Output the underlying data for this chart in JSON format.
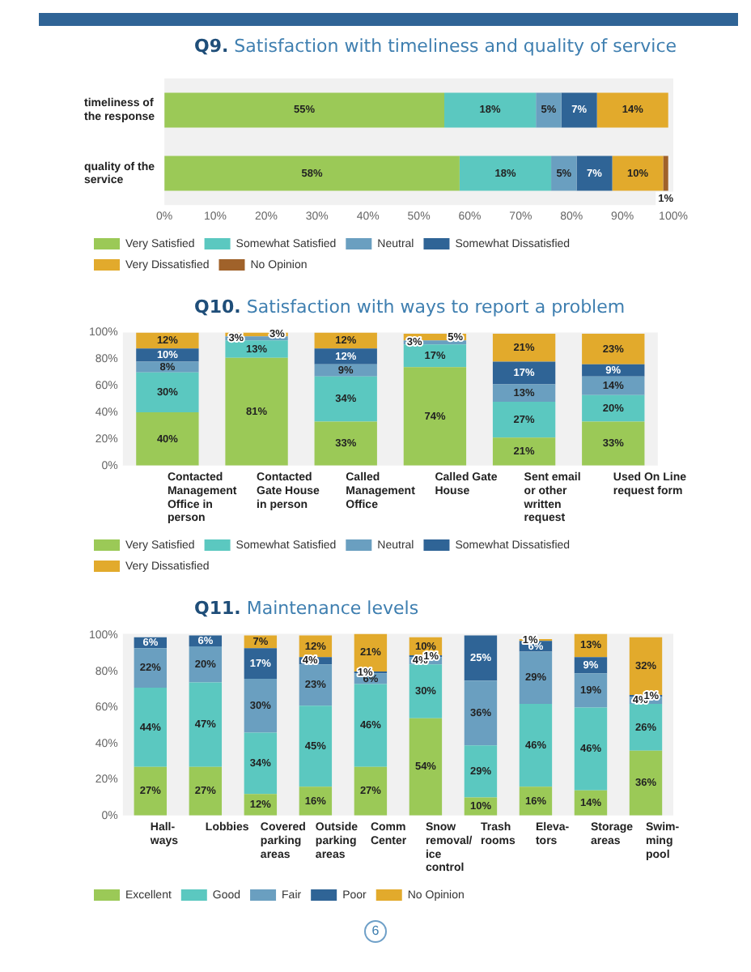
{
  "chart_data": [
    {
      "type": "bar",
      "title": "Q9. Satisfaction with timeliness and quality of service",
      "orientation": "horizontal",
      "stacked": true,
      "legend": "bottom",
      "categories": [
        "timeliness of the response",
        "quality of the service"
      ],
      "xlim": [
        0,
        100
      ],
      "xticks": [
        {
          "value": 0,
          "label": "0%"
        },
        {
          "value": 10,
          "label": "10%"
        },
        {
          "value": 20,
          "label": "20%"
        },
        {
          "value": 30,
          "label": "30%"
        },
        {
          "value": 40,
          "label": "40%"
        },
        {
          "value": 50,
          "label": "50%"
        },
        {
          "value": 60,
          "label": "60%"
        },
        {
          "value": 70,
          "label": "70%"
        },
        {
          "value": 80,
          "label": "80%"
        },
        {
          "value": 90,
          "label": "90%"
        },
        {
          "value": 100,
          "label": "100%"
        }
      ],
      "series": [
        {
          "name": "Very Satisfied",
          "color": "#9bc957",
          "values": [
            55,
            58
          ],
          "value_labels": [
            "55%",
            "58%"
          ]
        },
        {
          "name": "Somewhat Satisfied",
          "color": "#5bc8c0",
          "values": [
            18,
            18
          ],
          "value_labels": [
            "18%",
            "18%"
          ]
        },
        {
          "name": "Neutral",
          "color": "#6a9fc0",
          "values": [
            5,
            5
          ],
          "value_labels": [
            "5%",
            "5%"
          ]
        },
        {
          "name": "Somewhat Dissatisfied",
          "color": "#2f6496",
          "values": [
            7,
            7
          ],
          "value_labels": [
            "7%",
            "7%"
          ]
        },
        {
          "name": "Very Dissatisfied",
          "color": "#e2aa2c",
          "values": [
            14,
            10
          ],
          "value_labels": [
            "14%",
            "10%"
          ]
        },
        {
          "name": "No Opinion",
          "color": "#a0622a",
          "values": [
            null,
            1
          ],
          "value_labels": [
            null,
            "1%"
          ]
        }
      ]
    },
    {
      "type": "bar",
      "title": "Q10. Satisfaction with ways to report a problem",
      "stacked": true,
      "legend": "bottom",
      "categories": [
        "Contacted Management Office in person",
        "Contacted Gate House in person",
        "Called Management Office",
        "Called Gate House",
        "Sent email or other written request",
        "Used On Line request form"
      ],
      "ylim": [
        0,
        100
      ],
      "yticks": [
        {
          "value": 0,
          "label": "0%"
        },
        {
          "value": 20,
          "label": "20%"
        },
        {
          "value": 40,
          "label": "40%"
        },
        {
          "value": 60,
          "label": "60%"
        },
        {
          "value": 80,
          "label": "80%"
        },
        {
          "value": 100,
          "label": "100%"
        }
      ],
      "series": [
        {
          "name": "Very Satisfied",
          "color": "#9bc957",
          "values": [
            40,
            81,
            33,
            74,
            21,
            33
          ],
          "value_labels": [
            "40%",
            "81%",
            "33%",
            "74%",
            "21%",
            "33%"
          ]
        },
        {
          "name": "Somewhat Satisfied",
          "color": "#5bc8c0",
          "values": [
            30,
            13,
            34,
            17,
            27,
            20
          ],
          "value_labels": [
            "30%",
            "13%",
            "34%",
            "17%",
            "27%",
            "20%"
          ]
        },
        {
          "name": "Neutral",
          "color": "#6a9fc0",
          "values": [
            8,
            3,
            9,
            3,
            13,
            14
          ],
          "value_labels": [
            "8%",
            "3%",
            "9%",
            "3%",
            "13%",
            "14%"
          ]
        },
        {
          "name": "Somewhat Dissatisfied",
          "color": "#2f6496",
          "values": [
            10,
            null,
            12,
            null,
            17,
            9
          ],
          "value_labels": [
            "10%",
            null,
            "12%",
            null,
            "17%",
            "9%"
          ]
        },
        {
          "name": "Very Dissatisfied",
          "color": "#e2aa2c",
          "values": [
            12,
            3,
            12,
            5,
            21,
            23
          ],
          "value_labels": [
            "12%",
            "3%",
            "12%",
            "5%",
            "21%",
            "23%"
          ]
        }
      ]
    },
    {
      "type": "bar",
      "title": "Q11. Maintenance levels",
      "stacked": true,
      "legend": "bottom",
      "categories": [
        "Hall-ways",
        "Lobbies",
        "Covered parking areas",
        "Outside parking areas",
        "Comm Center",
        "Snow removal/ ice control",
        "Trash rooms",
        "Eleva-tors",
        "Storage areas",
        "Swim-ming pool"
      ],
      "ylim": [
        0,
        101
      ],
      "yticks": [
        {
          "value": 0,
          "label": "0%"
        },
        {
          "value": 20,
          "label": "20%"
        },
        {
          "value": 40,
          "label": "40%"
        },
        {
          "value": 60,
          "label": "60%"
        },
        {
          "value": 80,
          "label": "80%"
        },
        {
          "value": 100,
          "label": "100%"
        }
      ],
      "annotations": [
        "6"
      ],
      "series": [
        {
          "name": "Excellent",
          "color": "#9bc957",
          "values": [
            27,
            27,
            12,
            16,
            27,
            54,
            10,
            16,
            14,
            36
          ],
          "value_labels": [
            "27%",
            "27%",
            "12%",
            "16%",
            "27%",
            "54%",
            "10%",
            "16%",
            "14%",
            "36%"
          ]
        },
        {
          "name": "Good",
          "color": "#5bc8c0",
          "values": [
            44,
            47,
            34,
            45,
            46,
            30,
            29,
            46,
            46,
            26
          ],
          "value_labels": [
            "44%",
            "47%",
            "34%",
            "45%",
            "46%",
            "30%",
            "29%",
            "46%",
            "46%",
            "26%"
          ]
        },
        {
          "name": "Fair",
          "color": "#6a9fc0",
          "values": [
            22,
            20,
            30,
            23,
            6,
            4,
            36,
            29,
            19,
            4
          ],
          "value_labels": [
            "22%",
            "20%",
            "30%",
            "23%",
            "6%",
            "4%",
            "36%",
            "29%",
            "19%",
            "4%"
          ]
        },
        {
          "name": "Poor",
          "color": "#2f6496",
          "values": [
            6,
            6,
            17,
            4,
            1,
            1,
            25,
            6,
            9,
            1
          ],
          "value_labels": [
            "6%",
            "6%",
            "17%",
            "4%",
            "1%",
            "1%",
            "25%",
            "6%",
            "9%",
            "1%"
          ]
        },
        {
          "name": "No Opinion",
          "color": "#e2aa2c",
          "values": [
            null,
            null,
            7,
            12,
            21,
            10,
            null,
            1,
            13,
            32
          ],
          "value_labels": [
            null,
            null,
            "7%",
            "12%",
            "21%",
            "10%",
            null,
            "1%",
            "13%",
            "32%"
          ]
        }
      ]
    }
  ]
}
